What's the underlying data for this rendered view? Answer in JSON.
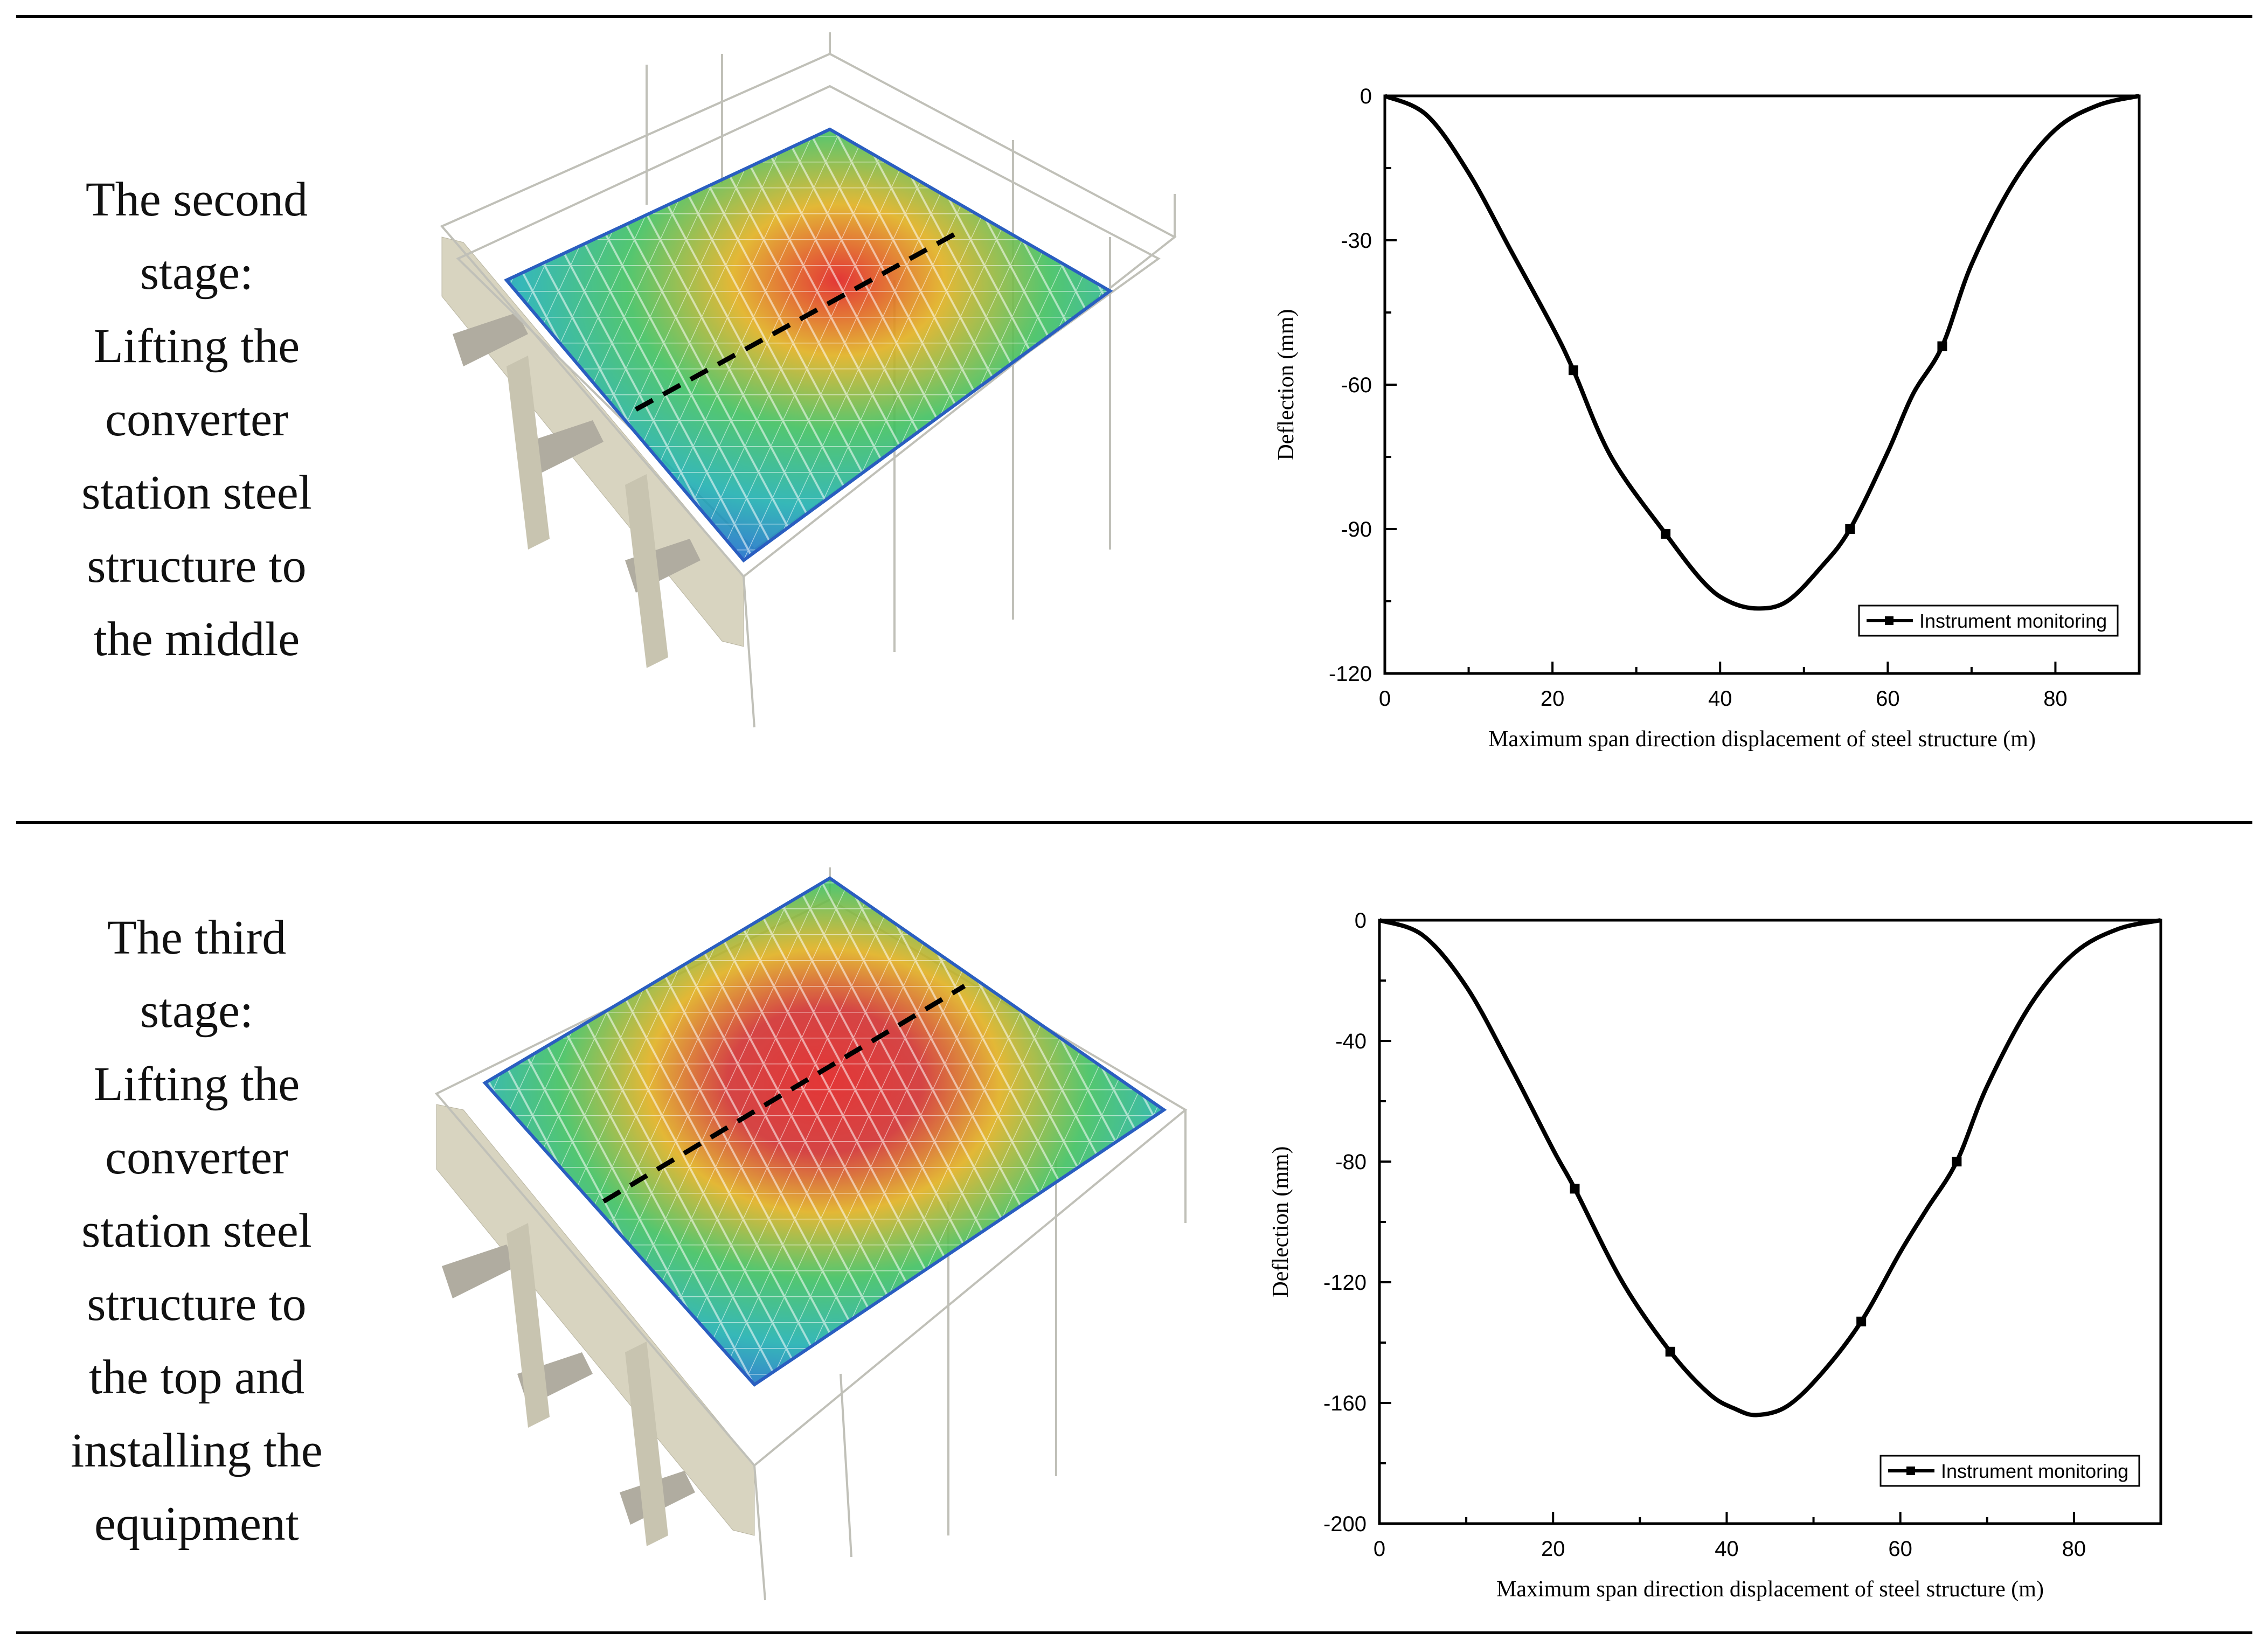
{
  "stages": [
    {
      "description": "The second\nstage:\nLifting the\nconverter\nstation steel\nstructure to\nthe middle"
    },
    {
      "description": "The third\nstage:\nLifting the\nconverter\nstation steel\nstructure to\nthe top and\ninstalling the\nequipment"
    }
  ],
  "colors": {
    "deflection_max": "#e02020",
    "deflection_mid": "#20c060",
    "deflection_min": "#2060d0",
    "frame": "#c8c8c0",
    "wall": "#d8d4c0",
    "line": "#000000"
  },
  "chart_data": [
    {
      "type": "line",
      "title": "",
      "xlabel": "Maximum span direction displacement of steel structure (m)",
      "ylabel": "Deflection (mm)",
      "xlim": [
        0,
        90
      ],
      "ylim": [
        -120,
        0
      ],
      "xticks": [
        "0",
        "20",
        "40",
        "60",
        "80"
      ],
      "xtick_values": [
        0,
        20,
        40,
        60,
        80
      ],
      "yticks": [
        "0",
        "-30",
        "-60",
        "-90",
        "-120"
      ],
      "ytick_values": [
        0,
        -30,
        -60,
        -90,
        -120
      ],
      "legend": "Instrument monitoring",
      "legend_position": "bottom-right",
      "grid": false,
      "series": [
        {
          "name": "Instrument monitoring",
          "curve": [
            [
              0,
              0
            ],
            [
              5,
              -4
            ],
            [
              10,
              -16
            ],
            [
              15,
              -32
            ],
            [
              20,
              -48
            ],
            [
              22.5,
              -57
            ],
            [
              27,
              -75
            ],
            [
              33.5,
              -91
            ],
            [
              38,
              -101
            ],
            [
              41,
              -105
            ],
            [
              44.5,
              -106.5
            ],
            [
              48,
              -105
            ],
            [
              52,
              -98
            ],
            [
              55.5,
              -90
            ],
            [
              60,
              -74
            ],
            [
              63,
              -62
            ],
            [
              66.5,
              -52
            ],
            [
              70,
              -35
            ],
            [
              75,
              -18
            ],
            [
              80,
              -7
            ],
            [
              85,
              -2
            ],
            [
              90,
              0
            ]
          ],
          "markers": [
            [
              22.5,
              -57
            ],
            [
              33.5,
              -91
            ],
            [
              55.5,
              -90
            ],
            [
              66.5,
              -52
            ]
          ]
        }
      ]
    },
    {
      "type": "line",
      "title": "",
      "xlabel": "Maximum span direction displacement of steel structure (m)",
      "ylabel": "Deflection (mm)",
      "xlim": [
        0,
        90
      ],
      "ylim": [
        -200,
        0
      ],
      "xticks": [
        "0",
        "20",
        "40",
        "60",
        "80"
      ],
      "xtick_values": [
        0,
        20,
        40,
        60,
        80
      ],
      "yticks": [
        "0",
        "-40",
        "-80",
        "-120",
        "-160",
        "-200"
      ],
      "ytick_values": [
        0,
        -40,
        -80,
        -120,
        -160,
        -200
      ],
      "legend": "Instrument monitoring",
      "legend_position": "bottom-right",
      "grid": false,
      "series": [
        {
          "name": "Instrument monitoring",
          "curve": [
            [
              0,
              0
            ],
            [
              5,
              -5
            ],
            [
              10,
              -22
            ],
            [
              15,
              -48
            ],
            [
              20,
              -76
            ],
            [
              22.5,
              -89
            ],
            [
              28,
              -120
            ],
            [
              33.5,
              -143
            ],
            [
              38,
              -157
            ],
            [
              41,
              -162
            ],
            [
              43.5,
              -164
            ],
            [
              47,
              -161
            ],
            [
              51,
              -150
            ],
            [
              55.5,
              -133
            ],
            [
              60,
              -110
            ],
            [
              63,
              -96
            ],
            [
              66.5,
              -80
            ],
            [
              70,
              -55
            ],
            [
              75,
              -28
            ],
            [
              80,
              -11
            ],
            [
              85,
              -3
            ],
            [
              90,
              0
            ]
          ],
          "markers": [
            [
              22.5,
              -89
            ],
            [
              33.5,
              -143
            ],
            [
              55.5,
              -133
            ],
            [
              66.5,
              -80
            ]
          ]
        }
      ]
    }
  ]
}
